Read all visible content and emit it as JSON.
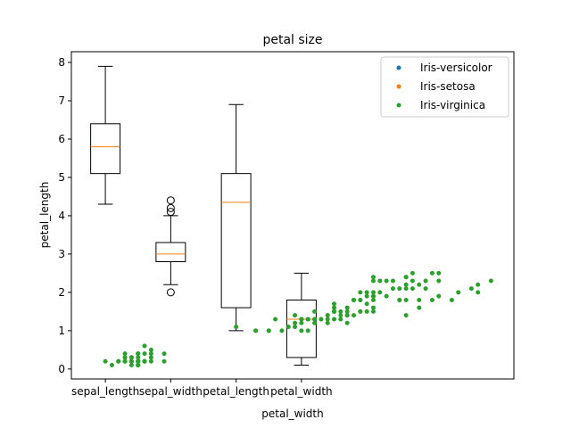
{
  "chart_data": {
    "type": "box",
    "title": "petal size",
    "x_label": "petal_width",
    "y_label": "petal_length",
    "xlim": [
      0.48,
      7.25
    ],
    "ylim": [
      -0.26,
      8.28
    ],
    "xticks": [
      {
        "value": 1,
        "label": "sepal_length"
      },
      {
        "value": 2,
        "label": "sepal_width"
      },
      {
        "value": 3,
        "label": "petal_length"
      },
      {
        "value": 4,
        "label": "petal_width"
      }
    ],
    "yticks": [
      0,
      1,
      2,
      3,
      4,
      5,
      6,
      7,
      8
    ],
    "median_color": "#ff7f0e",
    "boxes": [
      {
        "whislo": 4.3,
        "q1": 5.1,
        "med": 5.8,
        "q3": 6.4,
        "whishi": 7.9,
        "fliers": []
      },
      {
        "whislo": 2.2,
        "q1": 2.8,
        "med": 3.0,
        "q3": 3.3,
        "whishi": 4.0,
        "fliers": [
          4.4,
          4.1,
          4.2,
          2.0
        ]
      },
      {
        "whislo": 1.0,
        "q1": 1.6,
        "med": 4.35,
        "q3": 5.1,
        "whishi": 6.9,
        "fliers": []
      },
      {
        "whislo": 0.1,
        "q1": 0.3,
        "med": 1.3,
        "q3": 1.8,
        "whishi": 2.5,
        "fliers": []
      }
    ],
    "legend": [
      {
        "name": "Iris-versicolor",
        "color": "#1f77b4"
      },
      {
        "name": "Iris-setosa",
        "color": "#ff7f0e"
      },
      {
        "name": "Iris-virginica",
        "color": "#2ca02c"
      }
    ],
    "points": {
      "color": "#2ca02c",
      "x": [
        1.4,
        1.4,
        1.3,
        1.5,
        1.4,
        1.7,
        1.4,
        1.5,
        1.4,
        1.5,
        1.5,
        1.6,
        1.4,
        1.1,
        1.2,
        1.5,
        1.3,
        1.4,
        1.7,
        1.5,
        1.7,
        1.5,
        1.0,
        1.7,
        1.9,
        1.6,
        1.6,
        1.5,
        1.4,
        1.6,
        1.6,
        1.5,
        1.5,
        1.4,
        1.5,
        1.2,
        1.3,
        1.5,
        1.3,
        1.5,
        1.3,
        1.3,
        1.3,
        1.6,
        1.9,
        1.4,
        1.6,
        1.4,
        1.5,
        1.4,
        4.7,
        4.5,
        4.9,
        4.0,
        4.6,
        4.5,
        4.7,
        3.3,
        4.6,
        3.9,
        3.5,
        4.2,
        4.0,
        4.7,
        3.6,
        4.4,
        4.5,
        4.1,
        4.5,
        3.9,
        4.8,
        4.0,
        4.9,
        4.7,
        4.3,
        4.4,
        4.8,
        5.0,
        4.5,
        3.5,
        3.8,
        3.7,
        3.9,
        5.1,
        4.5,
        4.5,
        4.7,
        4.4,
        4.1,
        4.0,
        4.4,
        4.6,
        4.0,
        3.3,
        4.2,
        4.2,
        4.2,
        4.3,
        3.0,
        4.1,
        6.0,
        5.1,
        5.9,
        5.6,
        5.8,
        6.6,
        4.5,
        6.3,
        5.8,
        6.1,
        5.1,
        5.3,
        5.5,
        5.0,
        5.1,
        5.3,
        5.5,
        6.7,
        6.9,
        5.0,
        5.7,
        4.9,
        6.7,
        4.9,
        5.7,
        6.0,
        4.8,
        4.9,
        5.6,
        5.8,
        6.1,
        6.4,
        5.6,
        5.1,
        5.6,
        6.1,
        5.6,
        5.5,
        4.8,
        5.4,
        5.6,
        5.1,
        5.1,
        5.9,
        5.7,
        5.2,
        5.0,
        5.2,
        5.4,
        5.1
      ],
      "y": [
        0.2,
        0.2,
        0.2,
        0.2,
        0.2,
        0.4,
        0.3,
        0.2,
        0.2,
        0.1,
        0.2,
        0.2,
        0.1,
        0.1,
        0.2,
        0.4,
        0.4,
        0.3,
        0.3,
        0.3,
        0.2,
        0.4,
        0.2,
        0.5,
        0.2,
        0.2,
        0.4,
        0.2,
        0.2,
        0.2,
        0.2,
        0.4,
        0.1,
        0.2,
        0.1,
        0.2,
        0.2,
        0.1,
        0.2,
        0.2,
        0.3,
        0.3,
        0.2,
        0.6,
        0.4,
        0.3,
        0.2,
        0.2,
        0.2,
        0.2,
        1.4,
        1.5,
        1.5,
        1.3,
        1.5,
        1.3,
        1.6,
        1.0,
        1.3,
        1.4,
        1.0,
        1.5,
        1.0,
        1.4,
        1.3,
        1.4,
        1.5,
        1.0,
        1.5,
        1.1,
        1.8,
        1.3,
        1.5,
        1.2,
        1.3,
        1.4,
        1.4,
        1.7,
        1.5,
        1.0,
        1.1,
        1.0,
        1.2,
        1.6,
        1.5,
        1.6,
        1.5,
        1.3,
        1.3,
        1.3,
        1.2,
        1.4,
        1.2,
        1.0,
        1.3,
        1.2,
        1.3,
        1.3,
        1.1,
        1.3,
        2.5,
        1.9,
        2.1,
        1.8,
        2.2,
        2.1,
        1.7,
        1.8,
        1.8,
        2.5,
        2.0,
        1.9,
        2.1,
        2.0,
        2.4,
        2.3,
        1.8,
        2.2,
        2.3,
        1.5,
        2.3,
        2.0,
        2.0,
        1.8,
        2.1,
        1.8,
        1.8,
        1.8,
        2.1,
        1.6,
        1.9,
        2.0,
        2.2,
        1.5,
        1.4,
        2.3,
        2.4,
        1.8,
        1.8,
        2.1,
        2.4,
        2.3,
        1.9,
        2.3,
        2.5,
        2.3,
        1.9,
        2.0,
        2.3,
        1.8
      ]
    }
  }
}
